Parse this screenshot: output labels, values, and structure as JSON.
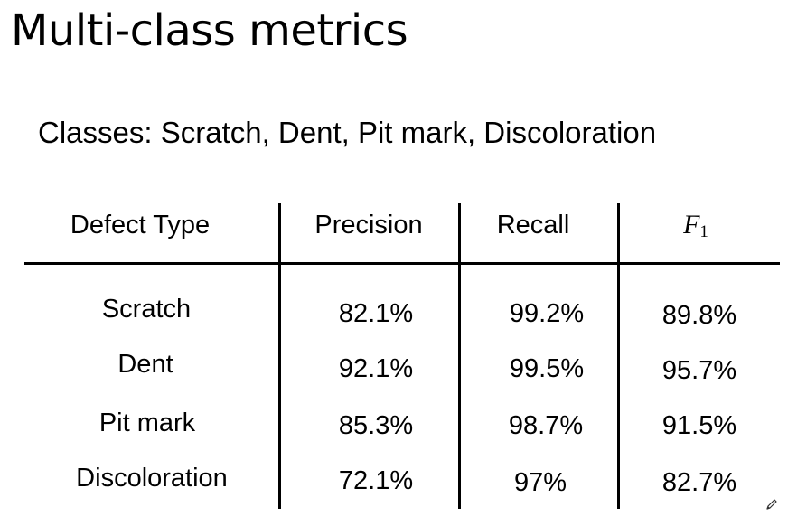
{
  "slide": {
    "title": "Multi-class metrics",
    "subtitle": "Classes: Scratch, Dent, Pit mark, Discoloration"
  },
  "table": {
    "headers": {
      "defect_type": "Defect Type",
      "precision": "Precision",
      "recall": "Recall",
      "f1_main": "F",
      "f1_sub": "1"
    },
    "rows": [
      {
        "defect_type": "Scratch",
        "precision": "82.1%",
        "recall": "99.2%",
        "f1": "89.8%"
      },
      {
        "defect_type": "Dent",
        "precision": "92.1%",
        "recall": "99.5%",
        "f1": "95.7%"
      },
      {
        "defect_type": "Pit mark",
        "precision": "85.3%",
        "recall": "98.7%",
        "f1": "91.5%"
      },
      {
        "defect_type": "Discoloration",
        "precision": "72.1%",
        "recall": "97%",
        "f1": "82.7%"
      }
    ]
  },
  "icons": {
    "annotation": "pencil-icon"
  }
}
